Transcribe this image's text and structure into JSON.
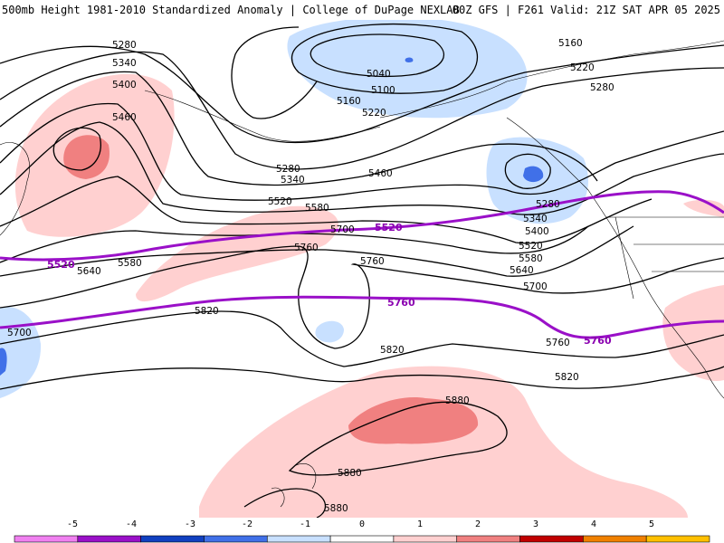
{
  "header": {
    "left_title": "500mb Height 1981-2010 Standardized Anomaly | College of DuPage NEXLAB",
    "right_title": "00Z GFS | F261 Valid: 21Z SAT APR 05 2025"
  },
  "contour_labels": [
    "5160",
    "5220",
    "5280",
    "5340",
    "5400",
    "5460",
    "5520",
    "5580",
    "5640",
    "5700",
    "5760",
    "5820",
    "5880",
    "5040",
    "5100"
  ],
  "climo_labels": [
    "5520",
    "5760"
  ],
  "colorbar": {
    "ticks": [
      "-5",
      "-4",
      "-3",
      "-2",
      "-1",
      "0",
      "1",
      "2",
      "3",
      "4",
      "5"
    ],
    "colors": [
      "#f080f0",
      "#9a10c8",
      "#1040c0",
      "#4070e8",
      "#c8e0ff",
      "#ffffff",
      "#ffd0d0",
      "#f08080",
      "#c00000",
      "#f08000",
      "#ffc000"
    ]
  }
}
